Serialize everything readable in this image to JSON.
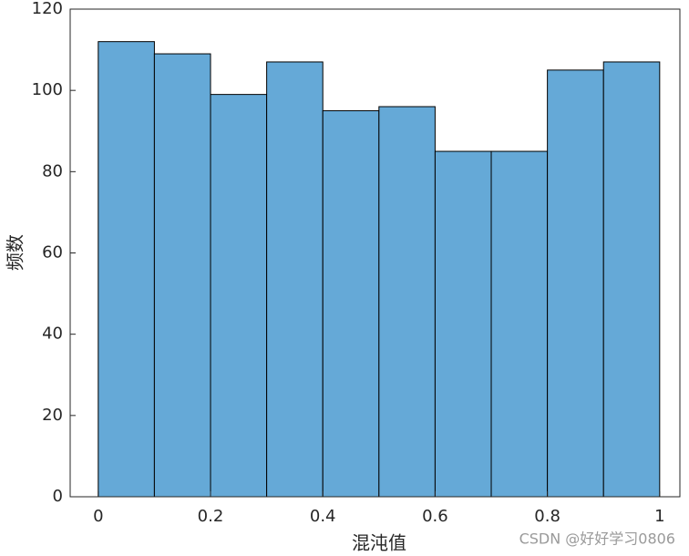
{
  "chart_data": {
    "type": "histogram",
    "xlabel": "混沌值",
    "ylabel": "频数",
    "bins": [
      0,
      0.1,
      0.2,
      0.3,
      0.4,
      0.5,
      0.6,
      0.7,
      0.8,
      0.9,
      1.0
    ],
    "values": [
      112,
      109,
      99,
      107,
      95,
      96,
      85,
      85,
      105,
      107
    ],
    "color": "#65a9d7",
    "edgecolor": "#000000",
    "xlim": [
      -0.05,
      1.036
    ],
    "xticks": [
      0,
      0.2,
      0.4,
      0.6,
      0.8,
      1
    ],
    "ylim": [
      0,
      120
    ],
    "yticks": [
      0,
      20,
      40,
      60,
      80,
      100,
      120
    ],
    "grid": false,
    "watermark": "CSDN @好好学习0806"
  }
}
